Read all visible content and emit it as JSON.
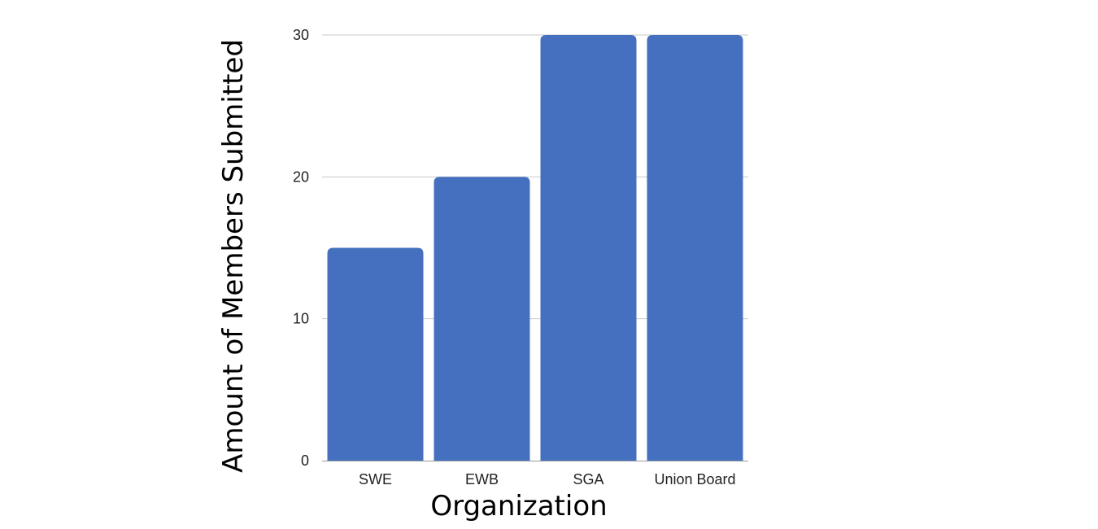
{
  "chart_data": {
    "type": "bar",
    "title": "",
    "xlabel": "Organization",
    "ylabel": "Amount of Members Submitted",
    "categories": [
      "SWE",
      "EWB",
      "SGA",
      "Union Board"
    ],
    "values": [
      15,
      20,
      30,
      30
    ],
    "ylim": [
      0,
      30
    ],
    "yticks": [
      0,
      10,
      20,
      30
    ],
    "grid": true,
    "legend": "none",
    "bar_color": "#4470bf"
  }
}
